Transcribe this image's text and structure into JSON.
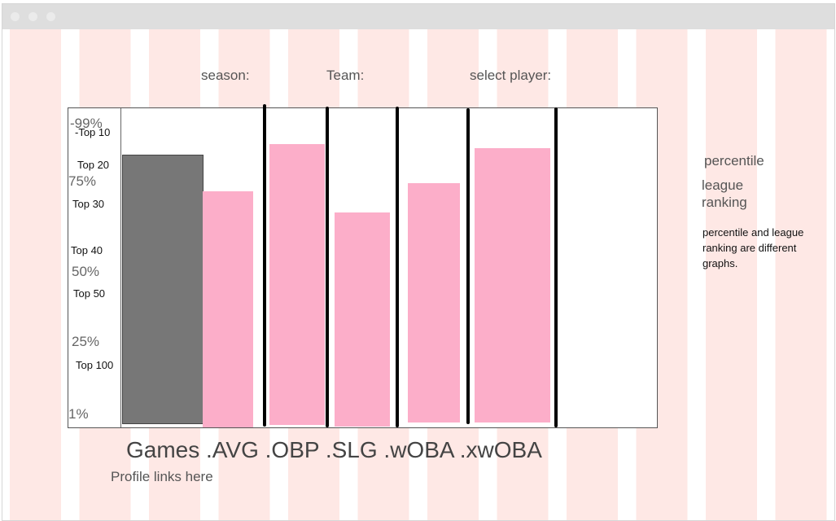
{
  "filters": {
    "season_label": "season:",
    "team_label": "Team:",
    "player_label": "select player:"
  },
  "chart_data": {
    "type": "bar",
    "categories": [
      "Games",
      ".AVG",
      ".OBP",
      ".SLG",
      ".wOBA",
      ".xwOBA"
    ],
    "values": [
      84,
      74,
      88,
      67,
      75,
      86
    ],
    "ylim": [
      0,
      100
    ],
    "y_tick_labels": [
      "-99%",
      "75%",
      "50%",
      "25%",
      "1%"
    ],
    "rank_labels": [
      "-Top 10",
      "Top 20",
      "Top 30",
      "Top 40",
      "Top 50",
      "Top 100"
    ],
    "colors": [
      "#777777",
      "#fcaec9",
      "#fcaec9",
      "#fcaec9",
      "#fcaec9",
      "#fcaec9"
    ],
    "grid": false
  },
  "category_line": "Games .AVG .OBP .SLG .wOBA .xwOBA",
  "profile_links": "Profile links here",
  "legend": {
    "percentile": "percentile",
    "league": "league",
    "ranking": "ranking",
    "note": "percentile and league ranking are different graphs."
  }
}
